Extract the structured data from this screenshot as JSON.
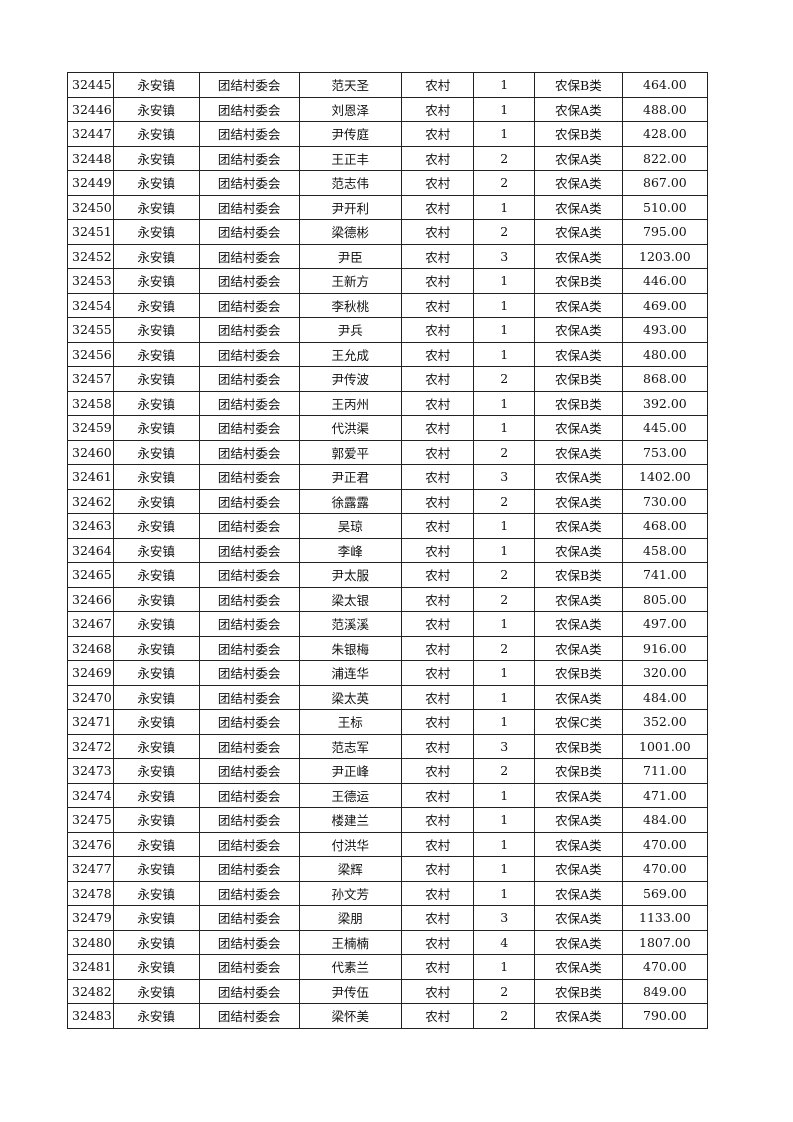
{
  "rows": [
    [
      "32445",
      "永安镇",
      "团结村委会",
      "范天圣",
      "农村",
      "1",
      "农保B类",
      "464.00"
    ],
    [
      "32446",
      "永安镇",
      "团结村委会",
      "刘恩泽",
      "农村",
      "1",
      "农保A类",
      "488.00"
    ],
    [
      "32447",
      "永安镇",
      "团结村委会",
      "尹传庭",
      "农村",
      "1",
      "农保B类",
      "428.00"
    ],
    [
      "32448",
      "永安镇",
      "团结村委会",
      "王正丰",
      "农村",
      "2",
      "农保A类",
      "822.00"
    ],
    [
      "32449",
      "永安镇",
      "团结村委会",
      "范志伟",
      "农村",
      "2",
      "农保A类",
      "867.00"
    ],
    [
      "32450",
      "永安镇",
      "团结村委会",
      "尹开利",
      "农村",
      "1",
      "农保A类",
      "510.00"
    ],
    [
      "32451",
      "永安镇",
      "团结村委会",
      "梁德彬",
      "农村",
      "2",
      "农保A类",
      "795.00"
    ],
    [
      "32452",
      "永安镇",
      "团结村委会",
      "尹臣",
      "农村",
      "3",
      "农保A类",
      "1203.00"
    ],
    [
      "32453",
      "永安镇",
      "团结村委会",
      "王新方",
      "农村",
      "1",
      "农保B类",
      "446.00"
    ],
    [
      "32454",
      "永安镇",
      "团结村委会",
      "李秋桃",
      "农村",
      "1",
      "农保A类",
      "469.00"
    ],
    [
      "32455",
      "永安镇",
      "团结村委会",
      "尹兵",
      "农村",
      "1",
      "农保A类",
      "493.00"
    ],
    [
      "32456",
      "永安镇",
      "团结村委会",
      "王允成",
      "农村",
      "1",
      "农保A类",
      "480.00"
    ],
    [
      "32457",
      "永安镇",
      "团结村委会",
      "尹传波",
      "农村",
      "2",
      "农保B类",
      "868.00"
    ],
    [
      "32458",
      "永安镇",
      "团结村委会",
      "王丙州",
      "农村",
      "1",
      "农保B类",
      "392.00"
    ],
    [
      "32459",
      "永安镇",
      "团结村委会",
      "代洪渠",
      "农村",
      "1",
      "农保A类",
      "445.00"
    ],
    [
      "32460",
      "永安镇",
      "团结村委会",
      "郭爱平",
      "农村",
      "2",
      "农保A类",
      "753.00"
    ],
    [
      "32461",
      "永安镇",
      "团结村委会",
      "尹正君",
      "农村",
      "3",
      "农保A类",
      "1402.00"
    ],
    [
      "32462",
      "永安镇",
      "团结村委会",
      "徐露露",
      "农村",
      "2",
      "农保A类",
      "730.00"
    ],
    [
      "32463",
      "永安镇",
      "团结村委会",
      "吴琼",
      "农村",
      "1",
      "农保A类",
      "468.00"
    ],
    [
      "32464",
      "永安镇",
      "团结村委会",
      "李峰",
      "农村",
      "1",
      "农保A类",
      "458.00"
    ],
    [
      "32465",
      "永安镇",
      "团结村委会",
      "尹太服",
      "农村",
      "2",
      "农保B类",
      "741.00"
    ],
    [
      "32466",
      "永安镇",
      "团结村委会",
      "梁太银",
      "农村",
      "2",
      "农保A类",
      "805.00"
    ],
    [
      "32467",
      "永安镇",
      "团结村委会",
      "范溪溪",
      "农村",
      "1",
      "农保A类",
      "497.00"
    ],
    [
      "32468",
      "永安镇",
      "团结村委会",
      "朱银梅",
      "农村",
      "2",
      "农保A类",
      "916.00"
    ],
    [
      "32469",
      "永安镇",
      "团结村委会",
      "浦连华",
      "农村",
      "1",
      "农保B类",
      "320.00"
    ],
    [
      "32470",
      "永安镇",
      "团结村委会",
      "梁太英",
      "农村",
      "1",
      "农保A类",
      "484.00"
    ],
    [
      "32471",
      "永安镇",
      "团结村委会",
      "王标",
      "农村",
      "1",
      "农保C类",
      "352.00"
    ],
    [
      "32472",
      "永安镇",
      "团结村委会",
      "范志军",
      "农村",
      "3",
      "农保B类",
      "1001.00"
    ],
    [
      "32473",
      "永安镇",
      "团结村委会",
      "尹正峰",
      "农村",
      "2",
      "农保B类",
      "711.00"
    ],
    [
      "32474",
      "永安镇",
      "团结村委会",
      "王德运",
      "农村",
      "1",
      "农保A类",
      "471.00"
    ],
    [
      "32475",
      "永安镇",
      "团结村委会",
      "楼建兰",
      "农村",
      "1",
      "农保A类",
      "484.00"
    ],
    [
      "32476",
      "永安镇",
      "团结村委会",
      "付洪华",
      "农村",
      "1",
      "农保A类",
      "470.00"
    ],
    [
      "32477",
      "永安镇",
      "团结村委会",
      "梁辉",
      "农村",
      "1",
      "农保A类",
      "470.00"
    ],
    [
      "32478",
      "永安镇",
      "团结村委会",
      "孙文芳",
      "农村",
      "1",
      "农保A类",
      "569.00"
    ],
    [
      "32479",
      "永安镇",
      "团结村委会",
      "梁朋",
      "农村",
      "3",
      "农保A类",
      "1133.00"
    ],
    [
      "32480",
      "永安镇",
      "团结村委会",
      "王楠楠",
      "农村",
      "4",
      "农保A类",
      "1807.00"
    ],
    [
      "32481",
      "永安镇",
      "团结村委会",
      "代素兰",
      "农村",
      "1",
      "农保A类",
      "470.00"
    ],
    [
      "32482",
      "永安镇",
      "团结村委会",
      "尹传伍",
      "农村",
      "2",
      "农保B类",
      "849.00"
    ],
    [
      "32483",
      "永安镇",
      "团结村委会",
      "梁怀美",
      "农村",
      "2",
      "农保A类",
      "790.00"
    ]
  ]
}
